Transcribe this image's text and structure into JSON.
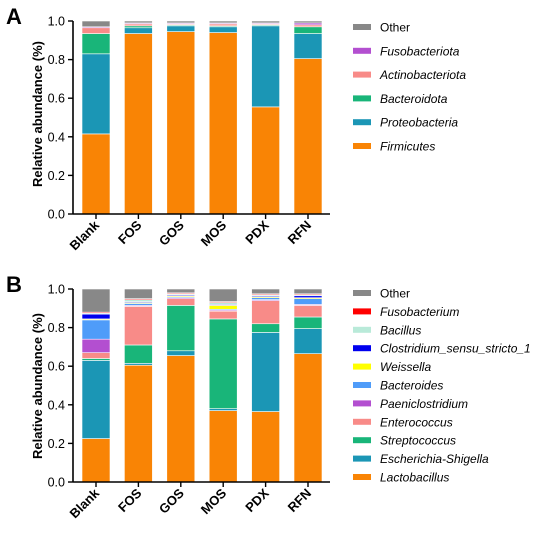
{
  "chart_data": [
    {
      "panel": "A",
      "type": "bar",
      "stacked": true,
      "ylabel": "Relative abundance (%)",
      "ylim": [
        0,
        1.0
      ],
      "yticks": [
        "0.0",
        "0.2",
        "0.4",
        "0.6",
        "0.8",
        "1.0"
      ],
      "categories": [
        "Blank",
        "FOS",
        "GOS",
        "MOS",
        "PDX",
        "RFN"
      ],
      "legend_position": "right",
      "series": [
        {
          "name": "Firmicutes",
          "color": "#F98405",
          "values": [
            0.415,
            0.935,
            0.945,
            0.94,
            0.555,
            0.805
          ]
        },
        {
          "name": "Proteobacteria",
          "color": "#1B96B5",
          "values": [
            0.415,
            0.03,
            0.03,
            0.03,
            0.42,
            0.13
          ]
        },
        {
          "name": "Bacteroidota",
          "color": "#19B579",
          "values": [
            0.105,
            0.01,
            0.005,
            0.005,
            0.005,
            0.035
          ]
        },
        {
          "name": "Actinobacteriota",
          "color": "#F88B88",
          "values": [
            0.03,
            0.01,
            0.005,
            0.01,
            0.005,
            0.01
          ]
        },
        {
          "name": "Fusobacteriota",
          "color": "#B34FD0",
          "values": [
            0.005,
            0.005,
            0.005,
            0.005,
            0.005,
            0.01
          ]
        },
        {
          "name": "Other",
          "color": "#888888",
          "values": [
            0.03,
            0.01,
            0.01,
            0.01,
            0.01,
            0.01
          ]
        }
      ],
      "legend_order": [
        "Other",
        "Fusobacteriota",
        "Actinobacteriota",
        "Bacteroidota",
        "Proteobacteria",
        "Firmicutes"
      ]
    },
    {
      "panel": "B",
      "type": "bar",
      "stacked": true,
      "ylabel": "Relative abundance (%)",
      "ylim": [
        0,
        1.0
      ],
      "yticks": [
        "0.0",
        "0.2",
        "0.4",
        "0.6",
        "0.8",
        "1.0"
      ],
      "categories": [
        "Blank",
        "FOS",
        "GOS",
        "MOS",
        "PDX",
        "RFN"
      ],
      "legend_position": "right",
      "series": [
        {
          "name": "Lactobacillus",
          "color": "#F98405",
          "values": [
            0.225,
            0.605,
            0.655,
            0.37,
            0.365,
            0.665
          ]
        },
        {
          "name": "Escherichia-Shigella",
          "color": "#1B96B5",
          "values": [
            0.405,
            0.01,
            0.025,
            0.01,
            0.41,
            0.13
          ]
        },
        {
          "name": "Streptococcus",
          "color": "#19B579",
          "values": [
            0.01,
            0.095,
            0.235,
            0.465,
            0.045,
            0.06
          ]
        },
        {
          "name": "Enterococcus",
          "color": "#F88B88",
          "values": [
            0.03,
            0.2,
            0.035,
            0.04,
            0.12,
            0.06
          ]
        },
        {
          "name": "Paeniclostridium",
          "color": "#B34FD0",
          "values": [
            0.07,
            0.005,
            0.005,
            0.005,
            0.005,
            0.005
          ]
        },
        {
          "name": "Bacteroides",
          "color": "#4F9CF9",
          "values": [
            0.1,
            0.01,
            0.005,
            0.005,
            0.01,
            0.03
          ]
        },
        {
          "name": "Weissella",
          "color": "#FFFF00",
          "values": [
            0.005,
            0.005,
            0.005,
            0.02,
            0.005,
            0.005
          ]
        },
        {
          "name": "Clostridium_sensu_stricto_1",
          "color": "#0000EE",
          "values": [
            0.025,
            0.005,
            0.005,
            0.005,
            0.005,
            0.01
          ]
        },
        {
          "name": "Bacillus",
          "color": "#B9EAD9",
          "values": [
            0.005,
            0.01,
            0.005,
            0.01,
            0.005,
            0.005
          ]
        },
        {
          "name": "Fusobacterium",
          "color": "#FF0000",
          "values": [
            0.005,
            0.005,
            0.005,
            0.005,
            0.005,
            0.005
          ]
        },
        {
          "name": "Other",
          "color": "#888888",
          "values": [
            0.12,
            0.05,
            0.02,
            0.065,
            0.025,
            0.025
          ]
        }
      ],
      "legend_order": [
        "Other",
        "Fusobacterium",
        "Bacillus",
        "Clostridium_sensu_stricto_1",
        "Weissella",
        "Bacteroides",
        "Paeniclostridium",
        "Enterococcus",
        "Streptococcus",
        "Escherichia-Shigella",
        "Lactobacillus"
      ]
    }
  ]
}
